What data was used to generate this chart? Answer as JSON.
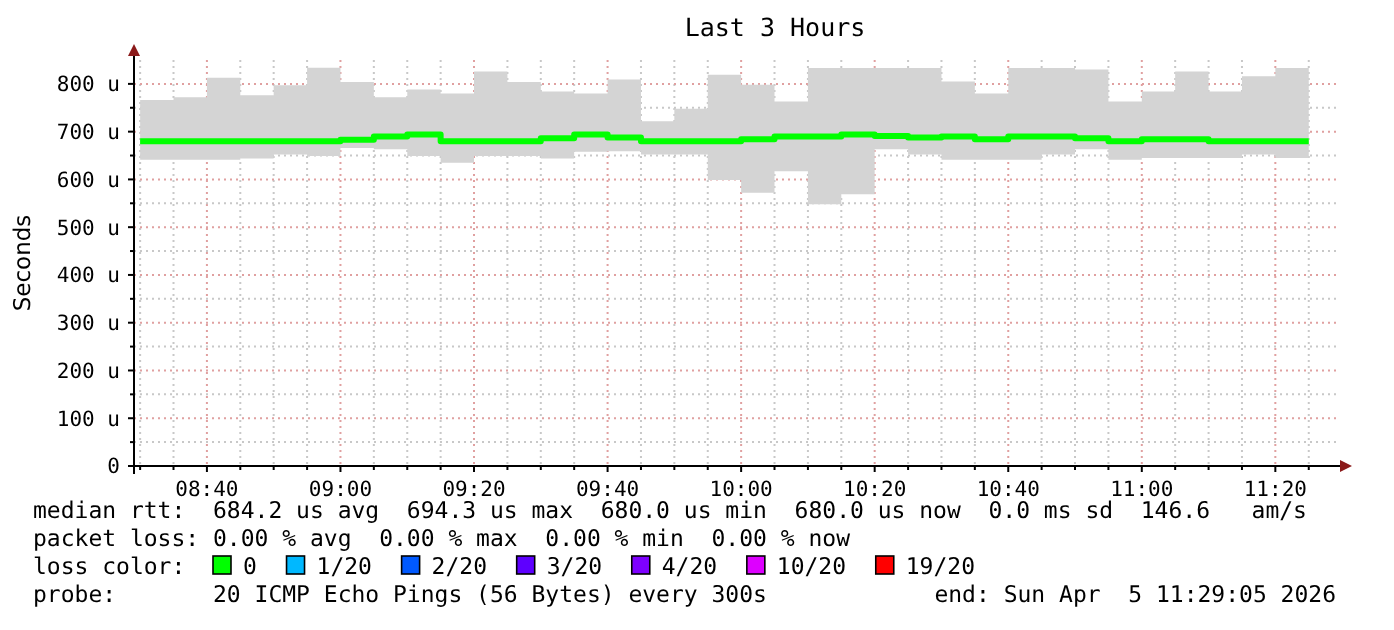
{
  "chart_data": {
    "type": "step",
    "title": "Last 3 Hours",
    "ylabel": "Seconds",
    "x": [
      8.5,
      8.5833,
      8.6667,
      8.75,
      8.8333,
      8.9167,
      9,
      9.0833,
      9.1667,
      9.25,
      9.3333,
      9.4167,
      9.5,
      9.5833,
      9.6667,
      9.75,
      9.8333,
      9.9167,
      10,
      10.0833,
      10.1667,
      10.25,
      10.3333,
      10.4167,
      10.5,
      10.5833,
      10.6667,
      10.75,
      10.8333,
      10.9167,
      11,
      11.0833,
      11.1667,
      11.25,
      11.3333,
      11.4167
    ],
    "xlim": [
      8.4847,
      11.4847
    ],
    "xticks": [
      {
        "value": 8.5,
        "label": null
      },
      {
        "value": 8.5833,
        "label": null
      },
      {
        "value": 8.6667,
        "label": "08:40"
      },
      {
        "value": 8.75,
        "label": null
      },
      {
        "value": 8.8333,
        "label": null
      },
      {
        "value": 8.9167,
        "label": null
      },
      {
        "value": 9,
        "label": "09:00"
      },
      {
        "value": 9.0833,
        "label": null
      },
      {
        "value": 9.1667,
        "label": null
      },
      {
        "value": 9.25,
        "label": null
      },
      {
        "value": 9.3333,
        "label": "09:20"
      },
      {
        "value": 9.4167,
        "label": null
      },
      {
        "value": 9.5,
        "label": null
      },
      {
        "value": 9.5833,
        "label": null
      },
      {
        "value": 9.6667,
        "label": "09:40"
      },
      {
        "value": 9.75,
        "label": null
      },
      {
        "value": 9.8333,
        "label": null
      },
      {
        "value": 9.9167,
        "label": null
      },
      {
        "value": 10,
        "label": "10:00"
      },
      {
        "value": 10.0833,
        "label": null
      },
      {
        "value": 10.1667,
        "label": null
      },
      {
        "value": 10.25,
        "label": null
      },
      {
        "value": 10.3333,
        "label": "10:20"
      },
      {
        "value": 10.4167,
        "label": null
      },
      {
        "value": 10.5,
        "label": null
      },
      {
        "value": 10.5833,
        "label": null
      },
      {
        "value": 10.6667,
        "label": "10:40"
      },
      {
        "value": 10.75,
        "label": null
      },
      {
        "value": 10.8333,
        "label": null
      },
      {
        "value": 10.9167,
        "label": null
      },
      {
        "value": 11,
        "label": "11:00"
      },
      {
        "value": 11.0833,
        "label": null
      },
      {
        "value": 11.1667,
        "label": null
      },
      {
        "value": 11.25,
        "label": null
      },
      {
        "value": 11.3333,
        "label": "11:20"
      },
      {
        "value": 11.4167,
        "label": null
      }
    ],
    "ylim": [
      0,
      850
    ],
    "yticks": [
      0,
      {
        "value": 50,
        "label": null
      },
      {
        "value": 100,
        "label": "100 u"
      },
      {
        "value": 150,
        "label": null
      },
      {
        "value": 200,
        "label": "200 u"
      },
      {
        "value": 250,
        "label": null
      },
      {
        "value": 300,
        "label": "300 u"
      },
      {
        "value": 350,
        "label": null
      },
      {
        "value": 400,
        "label": "400 u"
      },
      {
        "value": 450,
        "label": null
      },
      {
        "value": 500,
        "label": "500 u"
      },
      {
        "value": 550,
        "label": null
      },
      {
        "value": 600,
        "label": "600 u"
      },
      {
        "value": 650,
        "label": null
      },
      {
        "value": 700,
        "label": "700 u"
      },
      {
        "value": 750,
        "label": null
      },
      {
        "value": 800,
        "label": "800 u"
      }
    ],
    "grid": true,
    "legend": "bottom",
    "legend_title": "loss color:",
    "line_style": "solid",
    "marker": "none",
    "series": [
      {
        "name": "0",
        "color": "#00ff00",
        "values": [
          680,
          680,
          680,
          680,
          680,
          680,
          683,
          690,
          694,
          680,
          680,
          680,
          686,
          694,
          688,
          680,
          680,
          680,
          684,
          690,
          690,
          694,
          691,
          688,
          690,
          684,
          690,
          690,
          686,
          680,
          684,
          684,
          680,
          680,
          680,
          680
        ],
        "upper": [
          766,
          772,
          813,
          776,
          797,
          834,
          804,
          772,
          788,
          780,
          826,
          804,
          784,
          780,
          809,
          722,
          748,
          819,
          798,
          763,
          833,
          833,
          833,
          833,
          805,
          780,
          833,
          833,
          830,
          763,
          784,
          826,
          784,
          816,
          833,
          833
        ],
        "lower": [
          641,
          641,
          641,
          644,
          652,
          649,
          666,
          663,
          649,
          635,
          649,
          649,
          644,
          658,
          659,
          652,
          652,
          599,
          572,
          617,
          548,
          569,
          663,
          652,
          641,
          641,
          641,
          652,
          663,
          641,
          645,
          645,
          645,
          652,
          645,
          645
        ]
      },
      {
        "name": "1/20",
        "color": "#00b8ff",
        "values": [
          null,
          null,
          null,
          null,
          null,
          null,
          null,
          null,
          null,
          null,
          null,
          null,
          null,
          null,
          null,
          null,
          null,
          null,
          null,
          null,
          null,
          null,
          null,
          null,
          null,
          null,
          null,
          null,
          null,
          null,
          null,
          null,
          null,
          null,
          null,
          null
        ]
      },
      {
        "name": "2/20",
        "color": "#0059ff",
        "values": [
          null,
          null,
          null,
          null,
          null,
          null,
          null,
          null,
          null,
          null,
          null,
          null,
          null,
          null,
          null,
          null,
          null,
          null,
          null,
          null,
          null,
          null,
          null,
          null,
          null,
          null,
          null,
          null,
          null,
          null,
          null,
          null,
          null,
          null,
          null,
          null
        ]
      },
      {
        "name": "3/20",
        "color": "#5e00ff",
        "values": [
          null,
          null,
          null,
          null,
          null,
          null,
          null,
          null,
          null,
          null,
          null,
          null,
          null,
          null,
          null,
          null,
          null,
          null,
          null,
          null,
          null,
          null,
          null,
          null,
          null,
          null,
          null,
          null,
          null,
          null,
          null,
          null,
          null,
          null,
          null,
          null
        ]
      },
      {
        "name": "4/20",
        "color": "#7e00ff",
        "values": [
          null,
          null,
          null,
          null,
          null,
          null,
          null,
          null,
          null,
          null,
          null,
          null,
          null,
          null,
          null,
          null,
          null,
          null,
          null,
          null,
          null,
          null,
          null,
          null,
          null,
          null,
          null,
          null,
          null,
          null,
          null,
          null,
          null,
          null,
          null,
          null
        ]
      },
      {
        "name": "10/20",
        "color": "#dd00ff",
        "values": [
          null,
          null,
          null,
          null,
          null,
          null,
          null,
          null,
          null,
          null,
          null,
          null,
          null,
          null,
          null,
          null,
          null,
          null,
          null,
          null,
          null,
          null,
          null,
          null,
          null,
          null,
          null,
          null,
          null,
          null,
          null,
          null,
          null,
          null,
          null,
          null
        ]
      },
      {
        "name": "19/20",
        "color": "#ff0000",
        "values": [
          null,
          null,
          null,
          null,
          null,
          null,
          null,
          null,
          null,
          null,
          null,
          null,
          null,
          null,
          null,
          null,
          null,
          null,
          null,
          null,
          null,
          null,
          null,
          null,
          null,
          null,
          null,
          null,
          null,
          null,
          null,
          null,
          null,
          null,
          null,
          null
        ]
      }
    ],
    "annotations": [
      "median rtt:  684.2 us avg  694.3 us max  680.0 us min  680.0 us now  0.0 ms sd  146.6   am/s",
      "packet loss: 0.00 % avg  0.00 % max  0.00 % min  0.00 % now",
      "probe:       20 ICMP Echo Pings (56 Bytes) every 300s",
      "end: Sun Apr  5 11:29:05 2026"
    ]
  }
}
